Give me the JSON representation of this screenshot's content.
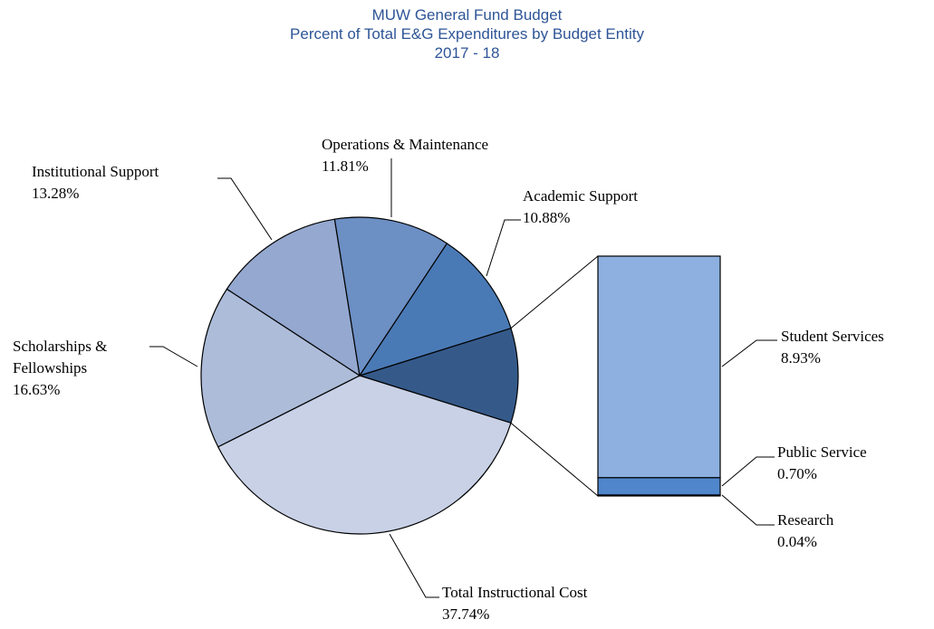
{
  "chart_data": {
    "type": "pie",
    "title": "MUW General Fund Budget",
    "subtitle": [
      "Percent of Total E&G Expenditures by Budget Entity",
      "2017 - 18"
    ],
    "categories": [
      "Total Instructional Cost",
      "Scholarships & Fellowships",
      "Institutional  Support",
      "Operations & Maintenance",
      "Academic Support"
    ],
    "values": [
      37.74,
      16.63,
      13.28,
      11.81,
      10.88
    ],
    "value_labels": [
      "37.74%",
      "16.63%",
      "13.28%",
      "11.81%",
      "10.88%"
    ],
    "colors": [
      "#c8d1e6",
      "#adbcd9",
      "#94a8d0",
      "#6c8fc4",
      "#4a7ab6"
    ],
    "other_color": "#355a8a",
    "bar": {
      "categories": [
        "Student Services",
        "Public Service",
        "Research"
      ],
      "values": [
        8.93,
        0.7,
        0.04
      ],
      "value_labels": [
        "8.93%",
        "0.70%",
        "0.04%"
      ],
      "colors": [
        "#8db0e0",
        "#4f86cc",
        "#1f3f6b"
      ]
    }
  }
}
